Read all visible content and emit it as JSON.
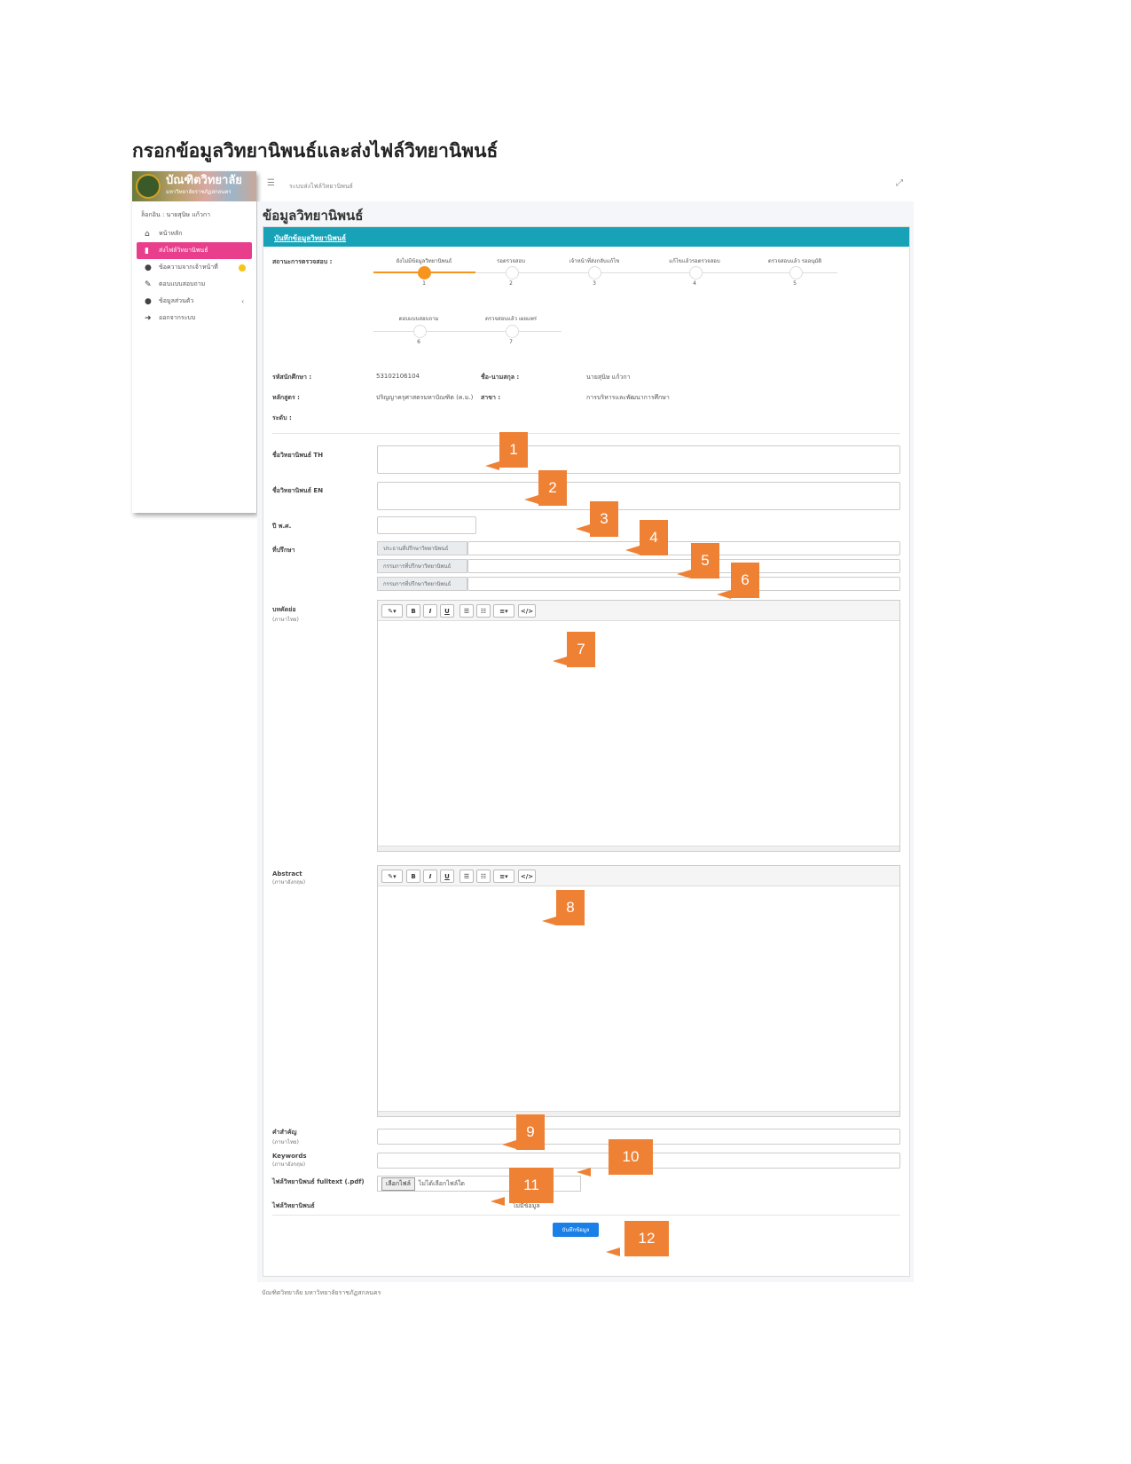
{
  "doc_title": "กรอกข้อมูลวิทยานิพนธ์และส่งไฟล์วิทยานิพนธ์",
  "sidebar": {
    "logo_title": "บัณฑิตวิทยาลัย",
    "logo_subtitle": "มหาวิทยาลัยราชภัฏสกลนคร",
    "login_text": "ล็อกอิน : นายสุนิษ แก้วกา",
    "items": [
      {
        "label": "หน้าหลัก",
        "icon": "home-icon",
        "glyph": "⌂"
      },
      {
        "label": "ส่งไฟล์วิทยานิพนธ์",
        "icon": "file-icon",
        "glyph": "▮"
      },
      {
        "label": "ข้อความจากเจ้าหน้าที่",
        "icon": "chat-icon",
        "glyph": "●"
      },
      {
        "label": "ตอบแบบสอบถาม",
        "icon": "edit-icon",
        "glyph": "✎"
      },
      {
        "label": "ข้อมูลส่วนตัว",
        "icon": "user-icon",
        "glyph": "●"
      },
      {
        "label": "ออกจากระบบ",
        "icon": "logout-icon",
        "glyph": "➜"
      }
    ]
  },
  "topbar": {
    "breadcrumb": "ระบบส่งไฟล์วิทยานิพนธ์"
  },
  "main": {
    "page_title": "ข้อมูลวิทยานิพนธ์",
    "card_title": "บันทึกข้อมูลวิทยานิพนธ์",
    "status_label": "สถานะการตรวจสอบ :",
    "steps": [
      {
        "label": "ยังไม่มีข้อมูลวิทยานิพนธ์",
        "num": "1",
        "active": true
      },
      {
        "label": "รอตรวจสอบ",
        "num": "2",
        "active": false
      },
      {
        "label": "เจ้าหน้าที่ส่งกลับแก้ไข",
        "num": "3",
        "active": false
      },
      {
        "label": "แก้ไขแล้วรอตรวจสอบ",
        "num": "4",
        "active": false
      },
      {
        "label": "ตรวจสอบแล้ว รออนุมัติ",
        "num": "5",
        "active": false
      },
      {
        "label": "ตอบแบบสอบถาม",
        "num": "6",
        "active": false
      },
      {
        "label": "ตรวจสอบแล้ว เผยแพร่",
        "num": "7",
        "active": false
      }
    ],
    "info": {
      "student_id_label": "รหัสนักศึกษา :",
      "student_id": "53102106104",
      "name_label": "ชื่อ-นามสกุล :",
      "name": "นายสุนิษ แก้วกา",
      "curriculum_label": "หลักสูตร :",
      "curriculum": "ปริญญาครุศาสตรมหาบัณฑิต (ค.ม.)",
      "major_label": "สาขา :",
      "major": "การบริหารและพัฒนาการศึกษา",
      "level_label": "ระดับ :"
    },
    "fields": {
      "title_th_label": "ชื่อวิทยานิพนธ์ TH",
      "title_en_label": "ชื่อวิทยานิพนธ์ EN",
      "year_label": "ปี พ.ศ.",
      "advisor_label": "ที่ปรึกษา",
      "advisor_chair": "ประธานที่ปรึกษาวิทยานิพนธ์",
      "advisor_co1": "กรรมการที่ปรึกษาวิทยานิพนธ์",
      "advisor_co2": "กรรมการที่ปรึกษาวิทยานิพนธ์",
      "abstract_th_label": "บทคัดย่อ",
      "abstract_th_sub": "(ภาษาไทย)",
      "abstract_en_label": "Abstract",
      "abstract_en_sub": "(ภาษาอังกฤษ)",
      "keywords_th_label": "คำสำคัญ",
      "keywords_th_sub": "(ภาษาไทย)",
      "keywords_en_label": "Keywords",
      "keywords_en_sub": "(ภาษาอังกฤษ)",
      "fulltext_label": "ไฟล์วิทยานิพนธ์ fulltext (.pdf)",
      "file_button": "เลือกไฟล์",
      "file_status": "ไม่ได้เลือกไฟล์ใด",
      "thesis_file_label": "ไฟล์วิทยานิพนธ์",
      "thesis_file_value": "ไม่มีข้อมูล",
      "save_button": "บันทึกข้อมูล"
    },
    "editor_tools": {
      "magic": "✎▾",
      "bold": "B",
      "italic": "I",
      "underline": "U",
      "ul": "☰",
      "ol": "☷",
      "align": "≡▾",
      "code": "</>"
    }
  },
  "footer": "บัณฑิตวิทยาลัย มหาวิทยาลัยราชภัฏสกลนคร",
  "callouts": [
    "1",
    "2",
    "3",
    "4",
    "5",
    "6",
    "7",
    "8",
    "9",
    "10",
    "11",
    "12"
  ],
  "colors": {
    "accent_teal": "#17a2b8",
    "active_pink": "#e83e8c",
    "callout_orange": "#ef8135",
    "progress_orange": "#f7941d",
    "save_blue": "#1a7fe6"
  }
}
